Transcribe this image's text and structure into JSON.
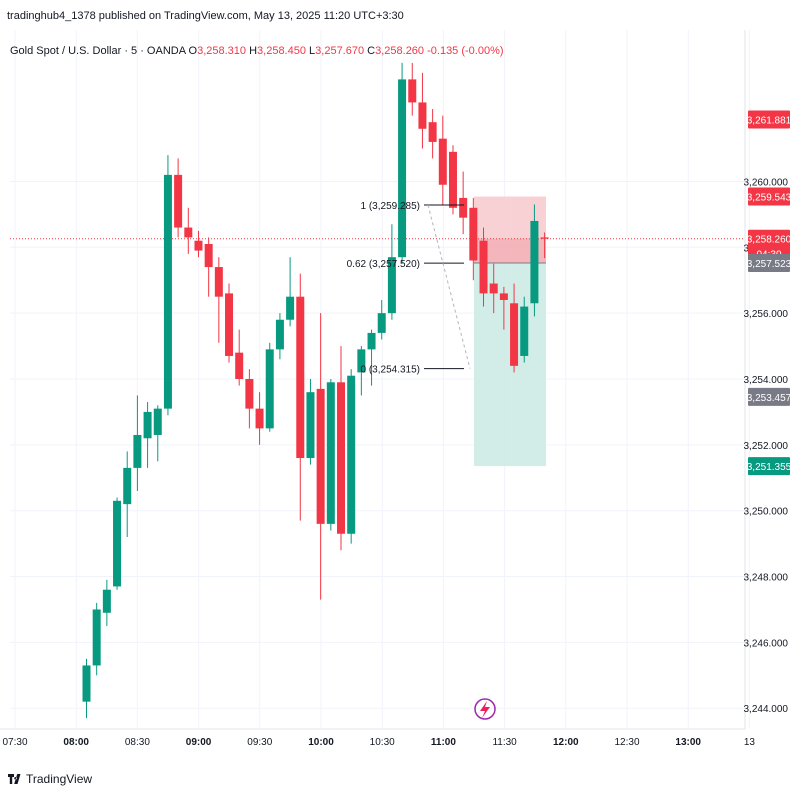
{
  "header": {
    "published_line": "tradinghub4_1378 published on TradingView.com, May 13, 2025 11:20 UTC+3:30"
  },
  "legend": {
    "symbol": "Gold Spot / U.S. Dollar · 5 · OANDA",
    "open_label": "O",
    "open": "3,258.310",
    "high_label": "H",
    "high": "3,258.450",
    "low_label": "L",
    "low": "3,257.670",
    "close_label": "C",
    "close": "3,258.260",
    "change": "-0.135 (-0.00%)"
  },
  "footer": {
    "brand": "TradingView"
  },
  "colors": {
    "up": "#089981",
    "down": "#f23645",
    "axis_text": "#131722",
    "grid": "#f0f3fa",
    "stop_zone": "#f7c9cd",
    "target_zone": "#cdebe6",
    "price_line": "#f23645"
  },
  "icons": {
    "replay": "lightning-icon",
    "brand": "tradingview-logo-icon"
  },
  "chart_data": {
    "type": "candlestick",
    "ylim": [
      3243.4,
      3264.6
    ],
    "y_ticks": [
      3244,
      3246,
      3248,
      3250,
      3252,
      3254,
      3256,
      3258,
      3260
    ],
    "x_ticks": [
      "07:30",
      "08:00",
      "08:30",
      "09:00",
      "09:30",
      "10:00",
      "10:30",
      "11:00",
      "11:30",
      "12:00",
      "12:30",
      "13:00",
      "13"
    ],
    "bold_x_ticks": [
      "08:00",
      "09:00",
      "10:00",
      "11:00",
      "12:00",
      "13:00"
    ],
    "candles": [
      {
        "o": 3244.2,
        "h": 3245.5,
        "l": 3243.7,
        "c": 3245.3
      },
      {
        "o": 3245.3,
        "h": 3247.2,
        "l": 3245.0,
        "c": 3247.0
      },
      {
        "o": 3246.9,
        "h": 3247.9,
        "l": 3246.5,
        "c": 3247.6
      },
      {
        "o": 3247.7,
        "h": 3250.4,
        "l": 3247.6,
        "c": 3250.3
      },
      {
        "o": 3250.2,
        "h": 3251.8,
        "l": 3249.2,
        "c": 3251.3
      },
      {
        "o": 3251.3,
        "h": 3253.5,
        "l": 3250.6,
        "c": 3252.3
      },
      {
        "o": 3252.2,
        "h": 3253.3,
        "l": 3251.3,
        "c": 3253.0
      },
      {
        "o": 3252.3,
        "h": 3253.2,
        "l": 3251.5,
        "c": 3253.1
      },
      {
        "o": 3253.1,
        "h": 3260.8,
        "l": 3252.9,
        "c": 3260.2
      },
      {
        "o": 3260.2,
        "h": 3260.7,
        "l": 3258.3,
        "c": 3258.6
      },
      {
        "o": 3258.6,
        "h": 3259.2,
        "l": 3257.8,
        "c": 3258.3
      },
      {
        "o": 3258.2,
        "h": 3258.5,
        "l": 3257.7,
        "c": 3257.9
      },
      {
        "o": 3258.1,
        "h": 3258.3,
        "l": 3256.5,
        "c": 3257.4
      },
      {
        "o": 3257.4,
        "h": 3257.7,
        "l": 3255.1,
        "c": 3256.5
      },
      {
        "o": 3256.6,
        "h": 3256.9,
        "l": 3254.5,
        "c": 3254.7
      },
      {
        "o": 3254.8,
        "h": 3255.5,
        "l": 3253.8,
        "c": 3254.0
      },
      {
        "o": 3254.0,
        "h": 3254.3,
        "l": 3252.5,
        "c": 3253.1
      },
      {
        "o": 3253.1,
        "h": 3253.6,
        "l": 3252.0,
        "c": 3252.5
      },
      {
        "o": 3252.5,
        "h": 3255.1,
        "l": 3252.4,
        "c": 3254.9
      },
      {
        "o": 3254.9,
        "h": 3256.0,
        "l": 3254.6,
        "c": 3255.8
      },
      {
        "o": 3255.8,
        "h": 3257.7,
        "l": 3255.6,
        "c": 3256.5
      },
      {
        "o": 3256.5,
        "h": 3257.2,
        "l": 3249.7,
        "c": 3251.6
      },
      {
        "o": 3251.6,
        "h": 3254.0,
        "l": 3251.4,
        "c": 3253.6
      },
      {
        "o": 3253.7,
        "h": 3256.0,
        "l": 3247.3,
        "c": 3249.6
      },
      {
        "o": 3249.6,
        "h": 3254.0,
        "l": 3249.4,
        "c": 3253.9
      },
      {
        "o": 3253.9,
        "h": 3255.0,
        "l": 3248.8,
        "c": 3249.3
      },
      {
        "o": 3249.3,
        "h": 3254.3,
        "l": 3249.0,
        "c": 3254.1
      },
      {
        "o": 3254.2,
        "h": 3255.0,
        "l": 3253.5,
        "c": 3254.9
      },
      {
        "o": 3254.9,
        "h": 3255.5,
        "l": 3253.8,
        "c": 3255.4
      },
      {
        "o": 3255.4,
        "h": 3256.4,
        "l": 3255.2,
        "c": 3256.0
      },
      {
        "o": 3256.0,
        "h": 3258.7,
        "l": 3255.8,
        "c": 3257.7
      },
      {
        "o": 3257.7,
        "h": 3263.6,
        "l": 3257.5,
        "c": 3263.1
      },
      {
        "o": 3263.1,
        "h": 3263.6,
        "l": 3262.0,
        "c": 3262.4
      },
      {
        "o": 3262.4,
        "h": 3263.3,
        "l": 3261.0,
        "c": 3261.6
      },
      {
        "o": 3261.8,
        "h": 3262.2,
        "l": 3260.7,
        "c": 3261.2
      },
      {
        "o": 3261.3,
        "h": 3262.0,
        "l": 3259.3,
        "c": 3259.9
      },
      {
        "o": 3260.9,
        "h": 3261.1,
        "l": 3259.0,
        "c": 3259.2
      },
      {
        "o": 3259.5,
        "h": 3260.3,
        "l": 3258.4,
        "c": 3258.9
      },
      {
        "o": 3259.2,
        "h": 3259.5,
        "l": 3257.0,
        "c": 3257.6
      },
      {
        "o": 3258.2,
        "h": 3258.6,
        "l": 3256.2,
        "c": 3256.6
      },
      {
        "o": 3256.9,
        "h": 3257.5,
        "l": 3256.0,
        "c": 3256.6
      },
      {
        "o": 3256.6,
        "h": 3256.8,
        "l": 3255.5,
        "c": 3256.4
      },
      {
        "o": 3256.3,
        "h": 3256.9,
        "l": 3254.2,
        "c": 3254.4
      },
      {
        "o": 3254.7,
        "h": 3256.5,
        "l": 3254.5,
        "c": 3256.2
      },
      {
        "o": 3256.3,
        "h": 3259.3,
        "l": 3255.9,
        "c": 3258.8
      },
      {
        "o": 3258.3,
        "h": 3258.45,
        "l": 3257.67,
        "c": 3258.26
      }
    ],
    "fib_levels": [
      {
        "label": "1 (3,259.285)",
        "price": 3259.285
      },
      {
        "label": "0.62 (3,257.520)",
        "price": 3257.52
      },
      {
        "label": "0 (3,254.315)",
        "price": 3254.315
      }
    ],
    "position": {
      "stop": 3259.543,
      "entry": 3257.523,
      "target": 3251.355
    },
    "current_price": 3258.26,
    "price_labels": [
      {
        "text": "3,261.881",
        "price": 3261.881,
        "color": "#f23645"
      },
      {
        "text": "3,259.543",
        "price": 3259.543,
        "color": "#f23645"
      },
      {
        "text": "3,258.260",
        "price": 3258.26,
        "color": "#f23645",
        "sub": "04:30"
      },
      {
        "text": "3,257.523",
        "price": 3257.523,
        "color": "#787b86"
      },
      {
        "text": "3,253.457",
        "price": 3253.457,
        "color": "#787b86"
      },
      {
        "text": "3,251.355",
        "price": 3251.355,
        "color": "#089981"
      }
    ]
  }
}
